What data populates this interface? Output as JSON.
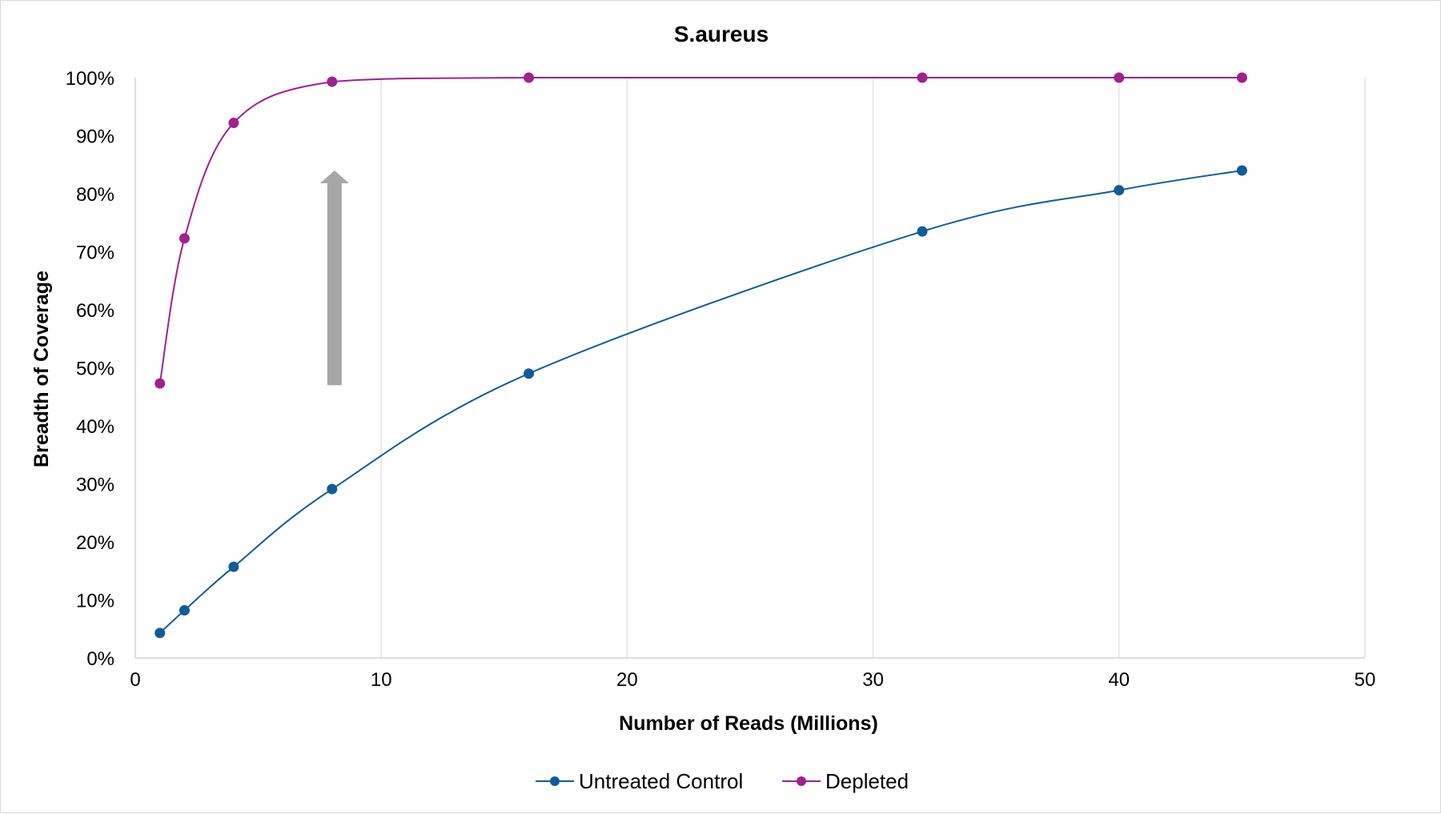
{
  "chart_data": {
    "type": "line",
    "title": "S.aureus",
    "xlabel": "Number of Reads (Millions)",
    "ylabel": "Breadth of Coverage",
    "xlim": [
      0,
      50
    ],
    "ylim": [
      0,
      100
    ],
    "x_ticks": [
      0,
      10,
      20,
      30,
      40,
      50
    ],
    "x_tick_labels": [
      "0",
      "10",
      "20",
      "30",
      "40",
      "50"
    ],
    "y_ticks": [
      0,
      10,
      20,
      30,
      40,
      50,
      60,
      70,
      80,
      90,
      100
    ],
    "y_tick_labels": [
      "0%",
      "10%",
      "20%",
      "30%",
      "40%",
      "50%",
      "60%",
      "70%",
      "80%",
      "90%",
      "100%"
    ],
    "grid": "vertical",
    "smooth": true,
    "legend_position": "bottom",
    "series": [
      {
        "name": "Untreated Control",
        "color": "#0f5c99",
        "x": [
          1,
          2,
          4,
          8,
          16,
          32,
          40,
          45
        ],
        "y": [
          4.3,
          8.2,
          15.7,
          29.1,
          49.0,
          73.5,
          80.6,
          84.0
        ]
      },
      {
        "name": "Depleted",
        "color": "#a0208f",
        "x": [
          1,
          2,
          4,
          8,
          16,
          32,
          40,
          45
        ],
        "y": [
          47.3,
          72.3,
          92.2,
          99.3,
          100,
          100,
          100,
          100
        ]
      }
    ],
    "annotations": [
      {
        "type": "arrow",
        "direction": "up",
        "color": "#a6a6a6",
        "x": 8.1,
        "y_from": 47,
        "y_to": 84
      }
    ]
  }
}
